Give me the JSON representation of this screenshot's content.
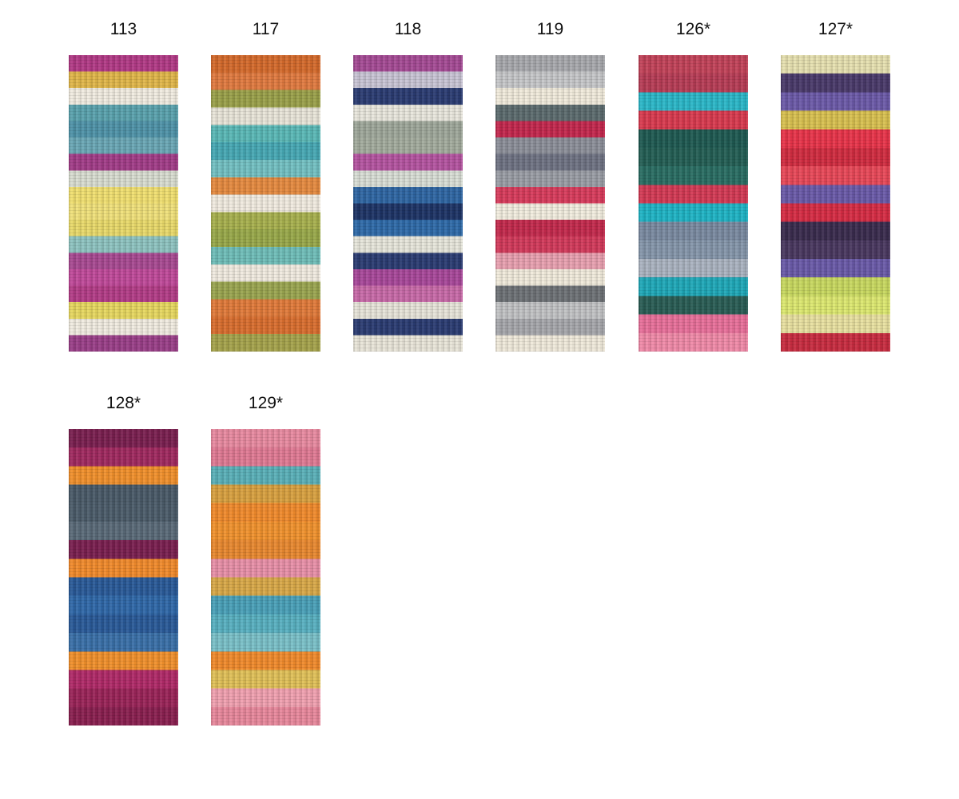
{
  "swatches": [
    {
      "label": "113",
      "colors": [
        "#b23a86",
        "#e0b64a",
        "#f0ebe0",
        "#5aa2ad",
        "#4f93a8",
        "#6aa7b5",
        "#a23d88",
        "#d8dcd0",
        "#f0df70",
        "#efe07a",
        "#e8d96a",
        "#8ec3c0",
        "#a84a92",
        "#c04a9a",
        "#b33d87",
        "#e6d760",
        "#f0ebe0",
        "#9a3f88"
      ]
    },
    {
      "label": "117",
      "colors": [
        "#d46a2c",
        "#e07a40",
        "#9aa04a",
        "#e8e4d8",
        "#5ab8b6",
        "#47a8b4",
        "#73c0c2",
        "#e58a40",
        "#f0eadf",
        "#a7b04e",
        "#98a84a",
        "#6fbdb8",
        "#f0eadf",
        "#9aa550",
        "#e07a3a",
        "#d96e2f",
        "#a5a34c"
      ]
    },
    {
      "label": "118",
      "colors": [
        "#a54b95",
        "#c8c4d4",
        "#2b3c72",
        "#e8e6dc",
        "#9ea79a",
        "#a3ab9d",
        "#b454a0",
        "#d8ddd5",
        "#2f66a3",
        "#1e3466",
        "#2f6aa8",
        "#e6e5da",
        "#2b3c72",
        "#a8489a",
        "#c86aa8",
        "#e6e3d8",
        "#2b3c72",
        "#e8e4d8"
      ]
    },
    {
      "label": "119",
      "colors": [
        "#a8a9ad",
        "#c6c7c9",
        "#f0eadb",
        "#5c6b6e",
        "#c4284e",
        "#8c8f99",
        "#6f7383",
        "#9a9da5",
        "#d83c5c",
        "#f1ecde",
        "#c32a4d",
        "#d23a5b",
        "#e8a0b0",
        "#f0eadb",
        "#6e7276",
        "#c1c2c4",
        "#a6a7ab",
        "#efe9da"
      ]
    },
    {
      "label": "126*",
      "colors": [
        "#c24359",
        "#b73d56",
        "#2bb7c8",
        "#d93a4f",
        "#1f5a52",
        "#245f55",
        "#2a6d63",
        "#d33a55",
        "#1fb4c5",
        "#7a8aa0",
        "#8596aa",
        "#aab3c0",
        "#1fa8b8",
        "#2a5d55",
        "#e8709a",
        "#f08aa8"
      ]
    },
    {
      "label": "127*",
      "colors": [
        "#e6e0b0",
        "#4a3a6a",
        "#6c5aa8",
        "#d8c050",
        "#e8344a",
        "#d02c40",
        "#e84858",
        "#6a5aa8",
        "#d62c44",
        "#3a2c4e",
        "#4a3860",
        "#6a5aa8",
        "#c8d860",
        "#dce870",
        "#e8e0a0",
        "#c82c40"
      ]
    },
    {
      "label": "128*",
      "colors": [
        "#7a2050",
        "#a02a60",
        "#f0902c",
        "#4a5a68",
        "#4c5c6a",
        "#5a6a78",
        "#7a2050",
        "#f08a2c",
        "#2a5a98",
        "#3068a8",
        "#2a5a98",
        "#3a70a8",
        "#f0902c",
        "#b02a68",
        "#9a2458",
        "#8a2050"
      ]
    },
    {
      "label": "129*",
      "colors": [
        "#e88aa0",
        "#e07a94",
        "#5ab0b8",
        "#d8a040",
        "#f08a2c",
        "#f0922e",
        "#e88830",
        "#e890a8",
        "#d8a848",
        "#4aa0b8",
        "#58b0c0",
        "#7ac0c8",
        "#f08a2c",
        "#e0c058",
        "#f0a0b0",
        "#e8889c"
      ]
    }
  ]
}
